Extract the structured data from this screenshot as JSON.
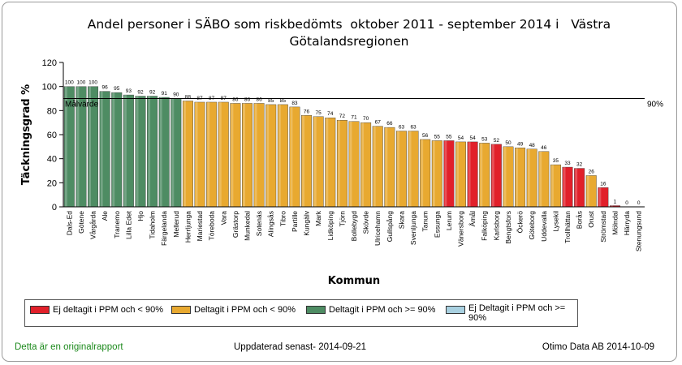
{
  "chart_data": {
    "type": "bar",
    "title": "Andel personer i SÄBO som riskbedömts  oktober 2011 - september 2014 i   Västra Götalandsregionen",
    "xlabel": "Kommun",
    "ylabel": "Täckningsgrad %",
    "ylim": [
      0,
      120
    ],
    "yticks": [
      0,
      20,
      40,
      60,
      80,
      100,
      120
    ],
    "categories": [
      "Dals-Ed",
      "Götene",
      "Vårgårda",
      "Ale",
      "Tranemo",
      "Lilla Edet",
      "Hjo",
      "Tidaholm",
      "Färgelanda",
      "Mellerud",
      "Herrljunga",
      "Mariestad",
      "Töreboda",
      "Vara",
      "Grästorp",
      "Munkedal",
      "Sotenäs",
      "Alingsås",
      "Tibro",
      "Partille",
      "Kungälv",
      "Mark",
      "Lidköping",
      "Tjörn",
      "Bollebygd",
      "Skövde",
      "Ulricehamn",
      "Gullspång",
      "Skara",
      "Svenljunga",
      "Tanum",
      "Essunga",
      "Lerum",
      "Vänersborg",
      "Åmål",
      "Falköping",
      "Karlsborg",
      "Bengtsfors",
      "Öckerö",
      "Göteborg",
      "Uddevalla",
      "Lysekil",
      "Trollhättan",
      "Borås",
      "Orust",
      "Strömstad",
      "Mölndal",
      "Härryda",
      "Stenungsund"
    ],
    "values": [
      100,
      100,
      100,
      96,
      95,
      93,
      92,
      92,
      91,
      90,
      88,
      87,
      87,
      87,
      86,
      86,
      86,
      85,
      85,
      83,
      76,
      75,
      74,
      72,
      71,
      70,
      67,
      66,
      63,
      63,
      56,
      55,
      55,
      54,
      54,
      53,
      52,
      50,
      49,
      48,
      46,
      35,
      33,
      32,
      26,
      16,
      1,
      0,
      0
    ],
    "groups": [
      "G",
      "G",
      "G",
      "G",
      "G",
      "G",
      "G",
      "G",
      "G",
      "G",
      "O",
      "O",
      "O",
      "O",
      "O",
      "O",
      "O",
      "O",
      "O",
      "O",
      "O",
      "O",
      "O",
      "O",
      "O",
      "O",
      "O",
      "O",
      "O",
      "O",
      "O",
      "O",
      "R",
      "O",
      "R",
      "O",
      "R",
      "O",
      "O",
      "O",
      "O",
      "O",
      "R",
      "R",
      "O",
      "R",
      "R",
      "O",
      "O"
    ],
    "colors": {
      "G": "#4e8c63",
      "O": "#e8a930",
      "R": "#e1202a",
      "L": "#a8d0e0"
    },
    "reference_line": {
      "value": 90,
      "label_left": "Målvärde",
      "label_right": "90%"
    },
    "legend_position": "bottom",
    "legend": [
      {
        "group": "R",
        "label": "Ej deltagit i PPM och < 90%"
      },
      {
        "group": "O",
        "label": "Deltagit i PPM och < 90%"
      },
      {
        "group": "G",
        "label": "Deltagit i PPM och >= 90%"
      },
      {
        "group": "L",
        "label": "Ej Deltagit i PPM och >= 90%"
      }
    ]
  },
  "footer": {
    "left": "Detta är en originalrapport",
    "middle": "Uppdaterad senast- 2014-09-21",
    "right": "Otimo Data AB 2014-10-09"
  }
}
